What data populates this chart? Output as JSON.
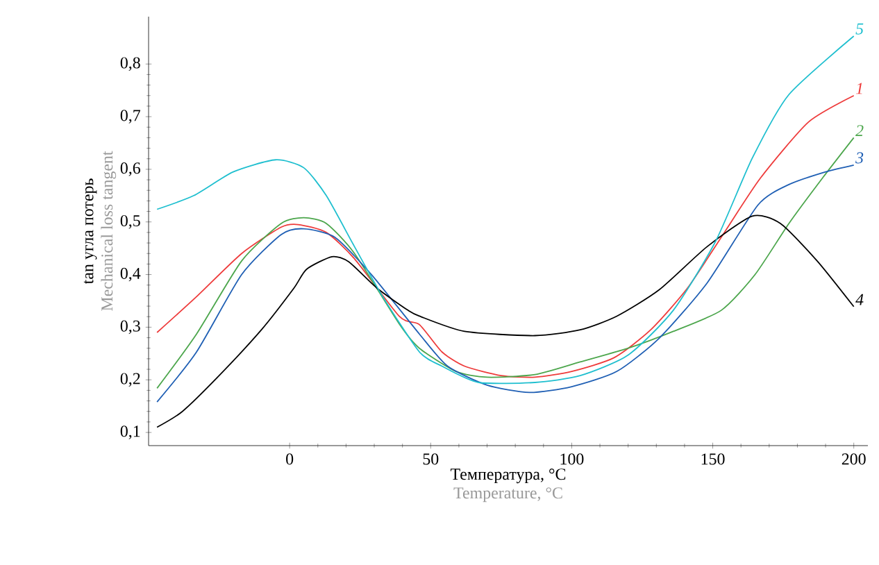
{
  "chart_data": {
    "type": "line",
    "xlabel": "Температура, °C",
    "ylabel": "tan угла потерь",
    "annotations": [
      "Temperature, °C",
      "Mechanical loss tangent"
    ],
    "xlim": [
      -50,
      205
    ],
    "ylim": [
      0.075,
      0.89
    ],
    "xticks": [
      0,
      50,
      100,
      150,
      200
    ],
    "yticks": [
      {
        "value": 0.1,
        "label": "0,1"
      },
      {
        "value": 0.2,
        "label": "0,2"
      },
      {
        "value": 0.3,
        "label": "0,3"
      },
      {
        "value": 0.4,
        "label": "0,4"
      },
      {
        "value": 0.5,
        "label": "0,5"
      },
      {
        "value": 0.6,
        "label": "0,6"
      },
      {
        "value": 0.7,
        "label": "0,7"
      },
      {
        "value": 0.8,
        "label": "0,8"
      }
    ],
    "grid": false,
    "legend": false,
    "marker": "none",
    "line_style": "solid",
    "series": [
      {
        "name": "1",
        "color": "#ee3b3b",
        "x": [
          -47,
          -33,
          -17,
          -3,
          3,
          13,
          23,
          39,
          46,
          54,
          62,
          75,
          87,
          100,
          115,
          128,
          141,
          154,
          167,
          184,
          200
        ],
        "values": [
          0.29,
          0.358,
          0.44,
          0.49,
          0.495,
          0.48,
          0.43,
          0.32,
          0.305,
          0.253,
          0.226,
          0.208,
          0.205,
          0.216,
          0.242,
          0.295,
          0.374,
          0.479,
          0.584,
          0.69,
          0.74
        ]
      },
      {
        "name": "2",
        "color": "#4ca64c",
        "x": [
          -47,
          -33,
          -17,
          -3,
          5,
          13,
          23,
          39,
          46,
          59,
          70,
          87,
          103,
          120,
          136,
          153,
          165,
          177,
          189,
          200
        ],
        "values": [
          0.184,
          0.287,
          0.426,
          0.497,
          0.508,
          0.497,
          0.44,
          0.305,
          0.26,
          0.216,
          0.205,
          0.21,
          0.234,
          0.26,
          0.292,
          0.332,
          0.4,
          0.497,
          0.584,
          0.66
        ]
      },
      {
        "name": "3",
        "color": "#1f5fb4",
        "x": [
          -47,
          -33,
          -17,
          -3,
          5,
          16,
          29,
          46,
          56,
          70,
          85,
          100,
          116,
          131,
          148,
          166,
          177,
          190,
          200
        ],
        "values": [
          0.158,
          0.253,
          0.4,
          0.476,
          0.487,
          0.471,
          0.4,
          0.287,
          0.226,
          0.19,
          0.176,
          0.187,
          0.216,
          0.279,
          0.384,
          0.532,
          0.571,
          0.595,
          0.608
        ]
      },
      {
        "name": "4",
        "color": "#000000",
        "x": [
          -47,
          -38,
          -25,
          -10,
          1.5,
          6,
          15,
          21,
          31,
          42,
          46,
          62,
          87,
          103,
          116,
          131,
          148,
          164,
          174,
          187,
          200
        ],
        "values": [
          0.11,
          0.14,
          0.208,
          0.295,
          0.374,
          0.41,
          0.434,
          0.424,
          0.374,
          0.332,
          0.321,
          0.292,
          0.284,
          0.295,
          0.321,
          0.371,
          0.453,
          0.511,
          0.497,
          0.426,
          0.339
        ]
      },
      {
        "name": "5",
        "color": "#1fbfcf",
        "x": [
          -47,
          -34,
          -20,
          -5,
          5,
          13,
          23,
          33,
          46,
          54,
          67,
          87,
          103,
          120,
          136,
          151,
          164,
          177,
          200
        ],
        "values": [
          0.524,
          0.55,
          0.595,
          0.618,
          0.603,
          0.55,
          0.453,
          0.358,
          0.253,
          0.226,
          0.195,
          0.195,
          0.208,
          0.247,
          0.332,
          0.463,
          0.621,
          0.742,
          0.853
        ]
      }
    ]
  }
}
